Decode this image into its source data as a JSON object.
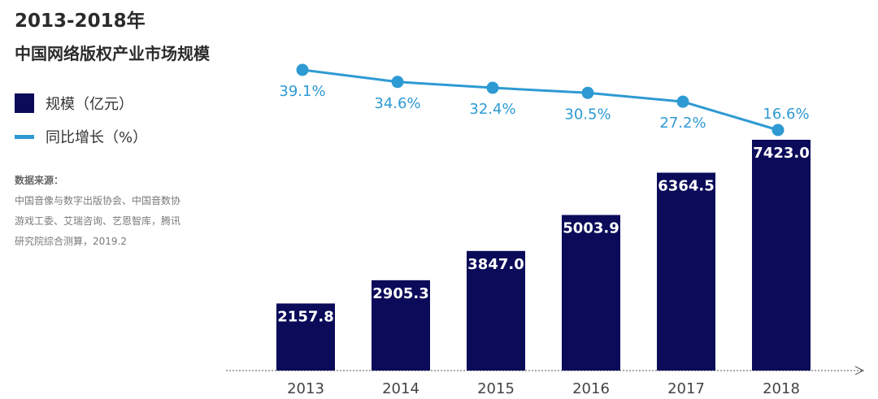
{
  "header": {
    "title": "2013-2018年",
    "subtitle": "中国网络版权产业市场规模"
  },
  "legend": {
    "bar_label": "规模（亿元）",
    "line_label": "同比增长（%）"
  },
  "source": {
    "title": "数据来源：",
    "lines": [
      "中国音像与数字出版协会、中国音数协",
      "游戏工委、艾瑞咨询、艺恩智库，腾讯",
      "研究院综合测算，2019.2"
    ]
  },
  "colors": {
    "bar": "#0b0b5a",
    "line": "#2e9ad3",
    "axis": "#555555",
    "bar_label": "#ffffff"
  },
  "chart_data": {
    "type": "bar",
    "categories": [
      "2013",
      "2014",
      "2015",
      "2016",
      "2017",
      "2018"
    ],
    "series": [
      {
        "name": "规模（亿元）",
        "type": "bar",
        "values": [
          2157.8,
          2905.3,
          3847.0,
          5003.9,
          6364.5,
          7423.0
        ],
        "labels": [
          "2157.8",
          "2905.3",
          "3847.0",
          "5003.9",
          "6364.5",
          "7423.0"
        ]
      },
      {
        "name": "同比增长（%）",
        "type": "line",
        "values": [
          39.1,
          34.6,
          32.4,
          30.5,
          27.2,
          16.6
        ],
        "labels": [
          "39.1%",
          "34.6%",
          "32.4%",
          "30.5%",
          "27.2%",
          "16.6%"
        ]
      }
    ],
    "legend_position": "left",
    "grid": false
  }
}
